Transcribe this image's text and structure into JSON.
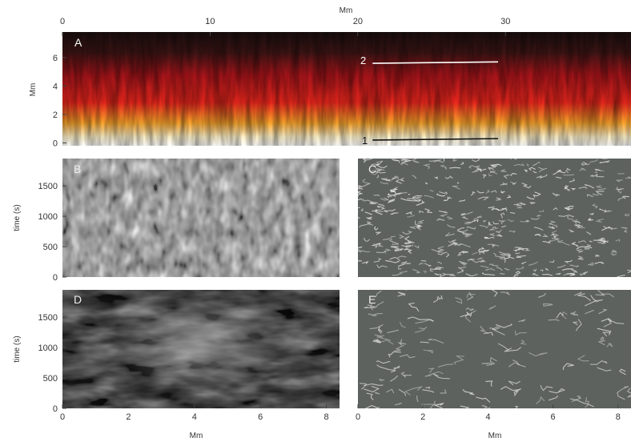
{
  "figure": {
    "panels": [
      {
        "id": "A",
        "label": "A"
      },
      {
        "id": "B",
        "label": "B"
      },
      {
        "id": "C",
        "label": "C"
      },
      {
        "id": "D",
        "label": "D"
      },
      {
        "id": "E",
        "label": "E"
      }
    ],
    "slit_labels": [
      "1",
      "2"
    ],
    "colors": {
      "panelA_bottom": "#ffffff",
      "panelA_mid": "#e8261c",
      "panelA_top": "#1a0e0e",
      "gray_panel": "#5d625e",
      "dark_panel": "#1a1a1a"
    }
  },
  "chart_data": [
    {
      "type": "heatmap",
      "panel": "A",
      "xlabel": "Mm",
      "ylabel": "Mm",
      "x_ticks": [
        "0",
        "10",
        "20",
        "30"
      ],
      "y_ticks": [
        "0",
        "2",
        "4",
        "6"
      ],
      "xlim": [
        0,
        38.5
      ],
      "ylim": [
        -0.2,
        7.8
      ],
      "slits": [
        {
          "name": "1",
          "x": [
            21,
            29.5
          ],
          "y": [
            0.2,
            0.3
          ],
          "color": "#111111"
        },
        {
          "name": "2",
          "x": [
            21,
            29.5
          ],
          "y": [
            5.6,
            5.7
          ],
          "color": "#ffffff"
        }
      ]
    },
    {
      "type": "heatmap",
      "panel": "B",
      "ylabel": "time (s)",
      "y_ticks": [
        "0",
        "500",
        "1000",
        "1500"
      ],
      "xlim": [
        0,
        8.4
      ],
      "ylim": [
        0,
        1950
      ]
    },
    {
      "type": "heatmap",
      "panel": "C",
      "xlim": [
        0,
        8.4
      ],
      "ylim": [
        0,
        1950
      ]
    },
    {
      "type": "heatmap",
      "panel": "D",
      "xlabel": "Mm",
      "ylabel": "time (s)",
      "x_ticks": [
        "0",
        "2",
        "4",
        "6",
        "8"
      ],
      "y_ticks": [
        "0",
        "500",
        "1000",
        "1500"
      ],
      "xlim": [
        0,
        8.4
      ],
      "ylim": [
        0,
        1950
      ]
    },
    {
      "type": "heatmap",
      "panel": "E",
      "xlabel": "Mm",
      "x_ticks": [
        "0",
        "2",
        "4",
        "6",
        "8"
      ],
      "xlim": [
        0,
        8.4
      ],
      "ylim": [
        0,
        1950
      ]
    }
  ]
}
